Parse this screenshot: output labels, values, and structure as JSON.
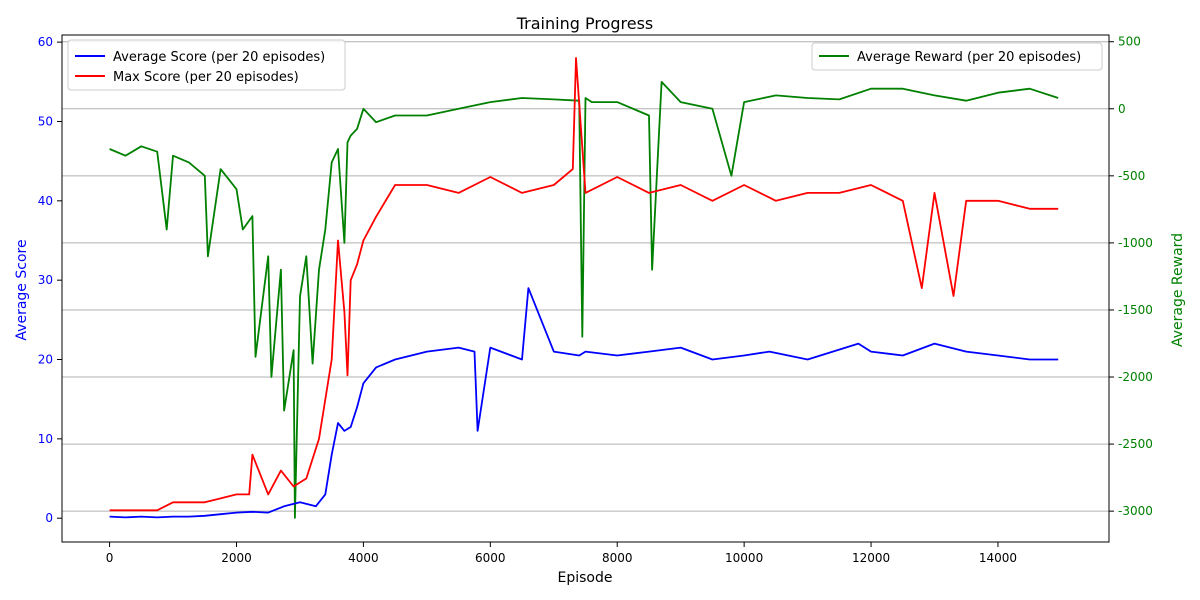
{
  "chart_data": {
    "type": "line",
    "title": "Training Progress",
    "xlabel": "Episode",
    "ylabel_left": "Average Score",
    "ylabel_right": "Average Reward",
    "xlim": [
      -750,
      15750
    ],
    "ylim_left": [
      -3.0,
      60.9
    ],
    "ylim_right": [
      -3230,
      550
    ],
    "x_ticks": [
      0,
      2000,
      4000,
      6000,
      8000,
      10000,
      12000,
      14000
    ],
    "y_ticks_left": [
      0,
      10,
      20,
      30,
      40,
      50,
      60
    ],
    "y_ticks_right": [
      -3000,
      -2500,
      -2000,
      -1500,
      -1000,
      -500,
      0,
      500
    ],
    "grid": "horizontal lines on right axis",
    "legend_left_position": "upper-left",
    "legend_right_position": "upper-right",
    "colors": {
      "avg_score": "#0000ff",
      "max_score": "#ff0000",
      "avg_reward": "#008000",
      "left_axis": "#0000ff",
      "right_axis": "#008000",
      "grid": "#b0b0b0"
    },
    "series": [
      {
        "name": "Average Score (per 20 episodes)",
        "axis": "left",
        "color": "#0000ff",
        "x": [
          0,
          250,
          500,
          750,
          1000,
          1250,
          1500,
          1750,
          2000,
          2250,
          2500,
          2750,
          3000,
          3250,
          3400,
          3500,
          3600,
          3700,
          3800,
          3900,
          4000,
          4200,
          4500,
          5000,
          5500,
          5750,
          5800,
          6000,
          6500,
          6600,
          7000,
          7400,
          7500,
          8000,
          8500,
          9000,
          9500,
          10000,
          10400,
          11000,
          11800,
          12000,
          12500,
          13000,
          13500,
          14000,
          14500,
          14950
        ],
        "y": [
          0.2,
          0.1,
          0.2,
          0.1,
          0.2,
          0.2,
          0.3,
          0.5,
          0.7,
          0.8,
          0.7,
          1.5,
          2.0,
          1.5,
          3.0,
          8.0,
          12.0,
          11.0,
          11.5,
          14.0,
          17.0,
          19.0,
          20.0,
          21.0,
          21.5,
          21.0,
          11.0,
          21.5,
          20.0,
          29.0,
          21.0,
          20.5,
          21.0,
          20.5,
          21.0,
          21.5,
          20.0,
          20.5,
          21.0,
          20.0,
          22.0,
          21.0,
          20.5,
          22.0,
          21.0,
          20.5,
          20.0,
          20.0
        ]
      },
      {
        "name": "Max Score (per 20 episodes)",
        "axis": "left",
        "color": "#ff0000",
        "x": [
          0,
          250,
          500,
          750,
          1000,
          1250,
          1500,
          1750,
          2000,
          2200,
          2250,
          2500,
          2700,
          2900,
          3100,
          3300,
          3500,
          3600,
          3700,
          3750,
          3800,
          3900,
          4000,
          4200,
          4500,
          5000,
          5500,
          6000,
          6500,
          7000,
          7300,
          7350,
          7500,
          8000,
          8500,
          9000,
          9500,
          10000,
          10500,
          11000,
          11500,
          12000,
          12500,
          12800,
          13000,
          13300,
          13500,
          14000,
          14500,
          14950
        ],
        "y": [
          1.0,
          1.0,
          1.0,
          1.0,
          2.0,
          2.0,
          2.0,
          2.5,
          3.0,
          3.0,
          8.0,
          3.0,
          6.0,
          4.0,
          5.0,
          10.0,
          20.0,
          35.0,
          26.0,
          18.0,
          30.0,
          32.0,
          35.0,
          38.0,
          42.0,
          42.0,
          41.0,
          43.0,
          41.0,
          42.0,
          44.0,
          58.0,
          41.0,
          43.0,
          41.0,
          42.0,
          40.0,
          42.0,
          40.0,
          41.0,
          41.0,
          42.0,
          40.0,
          29.0,
          41.0,
          28.0,
          40.0,
          40.0,
          39.0,
          39.0
        ]
      },
      {
        "name": "Average Reward (per 20 episodes)",
        "axis": "right",
        "color": "#008000",
        "x": [
          0,
          250,
          500,
          750,
          900,
          1000,
          1250,
          1500,
          1550,
          1750,
          2000,
          2100,
          2250,
          2300,
          2500,
          2550,
          2700,
          2750,
          2900,
          2920,
          3000,
          3100,
          3200,
          3300,
          3400,
          3500,
          3600,
          3700,
          3750,
          3800,
          3900,
          4000,
          4200,
          4500,
          5000,
          5500,
          6000,
          6500,
          7000,
          7400,
          7450,
          7500,
          7600,
          8000,
          8500,
          8550,
          8700,
          9000,
          9500,
          9800,
          10000,
          10500,
          11000,
          11500,
          12000,
          12500,
          13000,
          13500,
          14000,
          14500,
          14950
        ],
        "y": [
          -300,
          -350,
          -280,
          -320,
          -900,
          -350,
          -400,
          -500,
          -1100,
          -450,
          -600,
          -900,
          -800,
          -1850,
          -1100,
          -2000,
          -1200,
          -2250,
          -1800,
          -3050,
          -1400,
          -1100,
          -1900,
          -1200,
          -900,
          -400,
          -300,
          -1000,
          -250,
          -200,
          -150,
          0,
          -100,
          -50,
          -50,
          0,
          50,
          80,
          70,
          60,
          -1700,
          80,
          50,
          50,
          -50,
          -1200,
          200,
          50,
          0,
          -500,
          50,
          100,
          80,
          70,
          150,
          150,
          100,
          60,
          120,
          150,
          80
        ]
      }
    ]
  }
}
